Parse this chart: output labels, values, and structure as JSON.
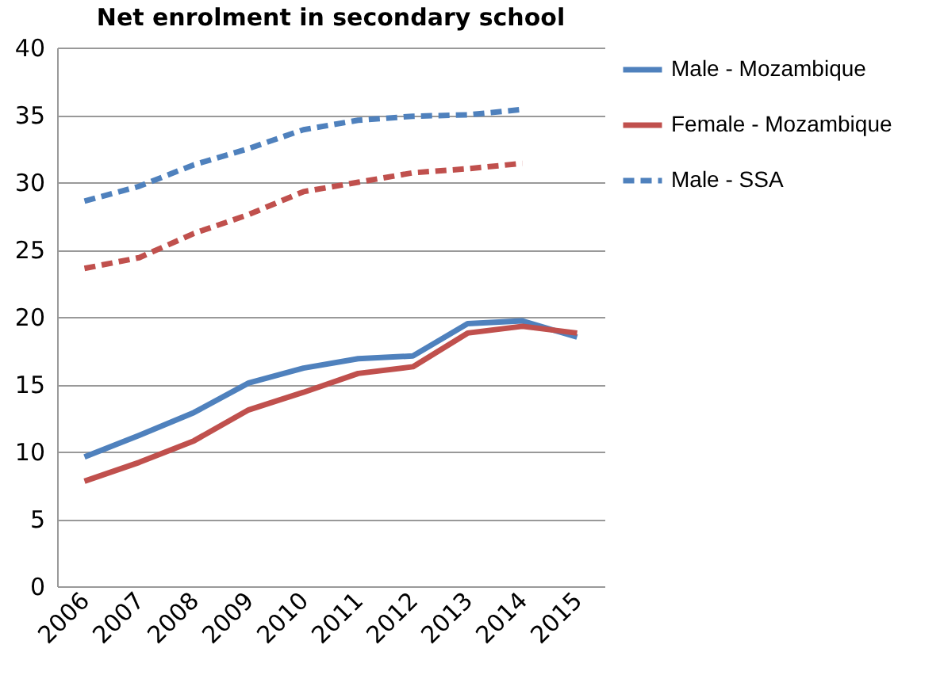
{
  "chart_data": {
    "type": "line",
    "title": "Net enrolment in secondary school",
    "categories": [
      "2006",
      "2007",
      "2008",
      "2009",
      "2010",
      "2011",
      "2012",
      "2013",
      "2014",
      "2015"
    ],
    "series": [
      {
        "name": "Male - Mozambique",
        "color": "#4f81bd",
        "line_style": "solid",
        "values": [
          9.6,
          11.2,
          12.9,
          15.1,
          16.2,
          16.9,
          17.1,
          19.5,
          19.7,
          18.5
        ]
      },
      {
        "name": "Female - Mozambique",
        "color": "#c0504d",
        "line_style": "solid",
        "values": [
          7.8,
          9.2,
          10.8,
          13.1,
          14.4,
          15.8,
          16.3,
          18.8,
          19.3,
          18.8
        ]
      },
      {
        "name": "Male - SSA",
        "color": "#4f81bd",
        "line_style": "dashed",
        "values": [
          28.6,
          29.7,
          31.3,
          32.5,
          33.9,
          34.6,
          34.9,
          35.0,
          35.4,
          null
        ]
      },
      {
        "color": "#c0504d",
        "line_style": "dashed",
        "values": [
          23.6,
          24.4,
          26.2,
          27.6,
          29.3,
          30.0,
          30.7,
          31.0,
          31.4,
          null
        ]
      }
    ],
    "ylim": [
      0,
      40
    ],
    "yticks": [
      0,
      5,
      10,
      15,
      20,
      25,
      30,
      35,
      40
    ],
    "grid": "y",
    "legend": "right"
  }
}
